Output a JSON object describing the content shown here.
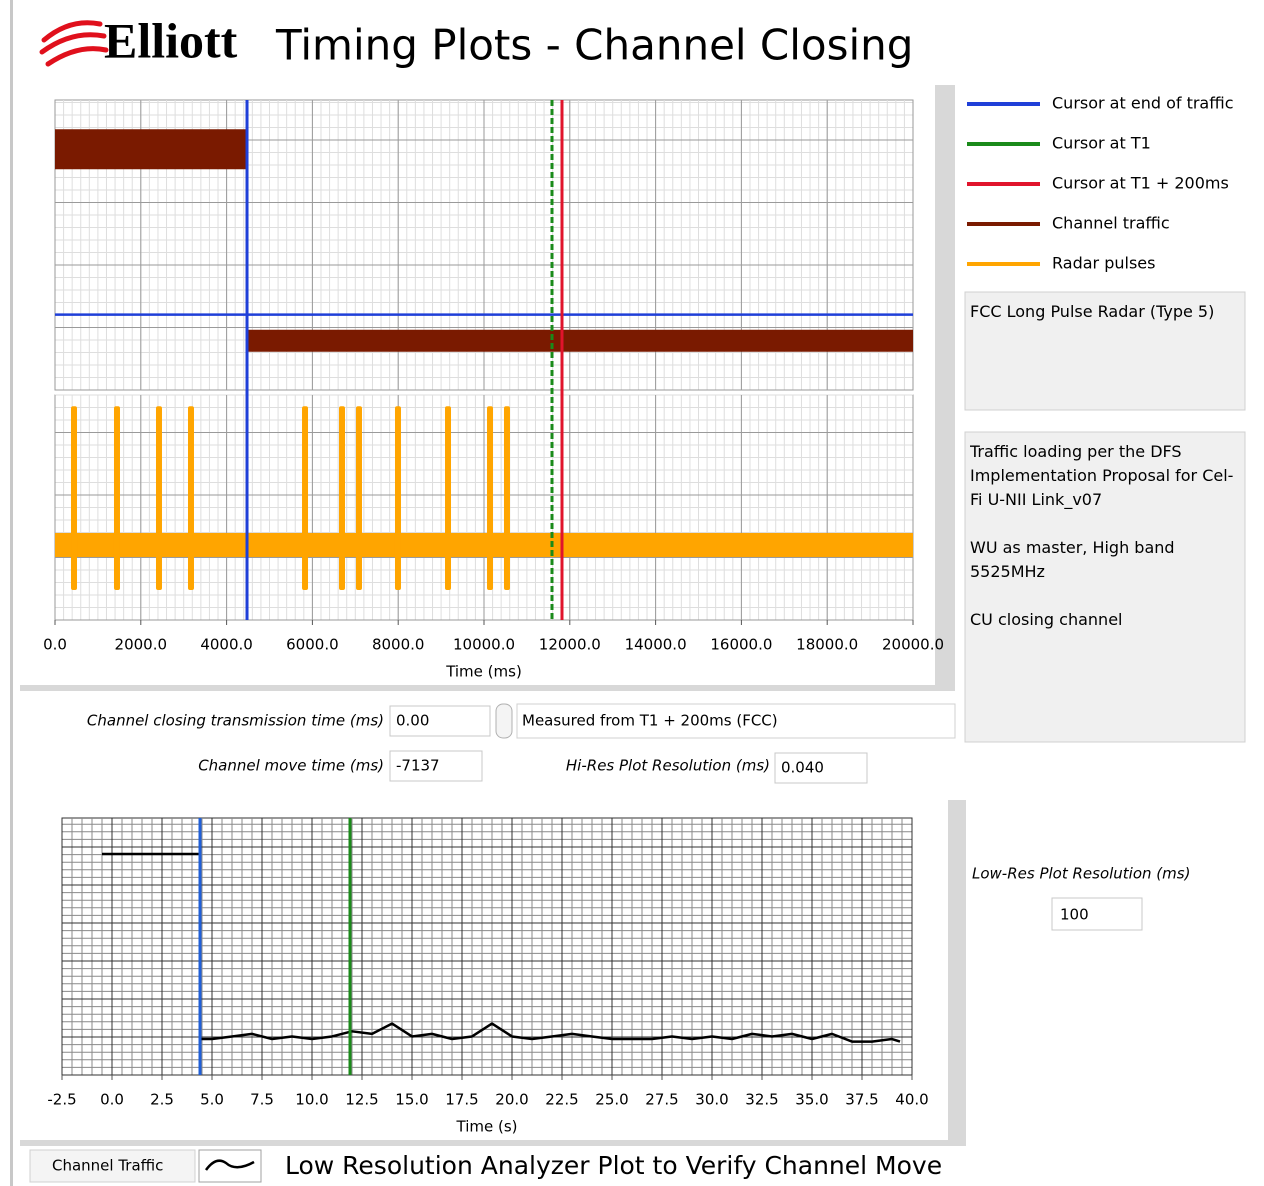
{
  "header": {
    "logo": "Elliott",
    "title": "Timing Plots - Channel Closing"
  },
  "chart_data": [
    {
      "type": "line",
      "xlabel": "Time (ms)",
      "xlim": [
        0,
        20000
      ],
      "xticks": [
        {
          "value": 0,
          "label": "0.0"
        },
        {
          "value": 2000,
          "label": "2000.0"
        },
        {
          "value": 4000,
          "label": "4000.0"
        },
        {
          "value": 6000,
          "label": "6000.0"
        },
        {
          "value": 8000,
          "label": "8000.0"
        },
        {
          "value": 10000,
          "label": "10000.0"
        },
        {
          "value": 12000,
          "label": "12000.0"
        },
        {
          "value": 14000,
          "label": "14000.0"
        },
        {
          "value": 16000,
          "label": "16000.0"
        },
        {
          "value": 18000,
          "label": "18000.0"
        },
        {
          "value": 20000,
          "label": "20000.0"
        }
      ],
      "ylim": [
        0,
        10
      ],
      "y2lim": [
        -1,
        2
      ],
      "grid": true,
      "cursors": [
        {
          "name": "Cursor at end of traffic",
          "color": "#1f3fd8",
          "x": 4476,
          "y": 2.6
        },
        {
          "name": "Cursor at T1",
          "color": "#1a8a1a",
          "x": 11585
        },
        {
          "name": "Cursor at T1 + 200ms",
          "color": "#e0142c",
          "x": 11818
        }
      ],
      "series": [
        {
          "name": "Channel traffic",
          "color": "#7a1a00",
          "x": [
            0,
            4476,
            null,
            4500,
            20000
          ],
          "values": [
            8.3,
            8.3,
            null,
            1.7,
            1.7
          ]
        },
        {
          "name": "Radar pulses",
          "color": "#ffa500",
          "axis": "y2",
          "baseline": 0,
          "pulse_min": -0.6,
          "x": [
            443,
            1445,
            2424,
            3170,
            5828,
            6690,
            7086,
            7995,
            9161,
            10140,
            10536
          ],
          "values": [
            1.85,
            1.85,
            1.85,
            1.85,
            1.85,
            1.85,
            1.85,
            1.85,
            1.85,
            1.85,
            1.85
          ]
        }
      ]
    },
    {
      "type": "line",
      "xlabel": "Time (s)",
      "caption": "Low Resolution Analyzer Plot to Verify Channel Move",
      "xlim": [
        -2.5,
        40
      ],
      "xticks": [
        -2.5,
        {
          "value": 0,
          "label": "0.0"
        },
        2.5,
        {
          "value": 5,
          "label": "5.0"
        },
        7.5,
        {
          "value": 10,
          "label": "10.0"
        },
        12.5,
        {
          "value": 15,
          "label": "15.0"
        },
        17.5,
        {
          "value": 20,
          "label": "20.0"
        },
        22.5,
        {
          "value": 25,
          "label": "25.0"
        },
        27.5,
        {
          "value": 30,
          "label": "30.0"
        },
        32.5,
        {
          "value": 35,
          "label": "35.0"
        },
        37.5,
        {
          "value": 40,
          "label": "40.0"
        }
      ],
      "ylim": [
        0,
        10
      ],
      "grid": true,
      "cursors": [
        {
          "color": "#1f5fd8",
          "x": 4.4
        },
        {
          "color": "#1a8a1a",
          "x": 11.9
        }
      ],
      "series": [
        {
          "name": "Channel Traffic",
          "color": "#000000",
          "x": [
            -0.5,
            4.4,
            4.4,
            5,
            6,
            7,
            8,
            9,
            10,
            11,
            12,
            13,
            14,
            15,
            16,
            17,
            18,
            19,
            20,
            21,
            22,
            23,
            24,
            25,
            26,
            27,
            28,
            29,
            30,
            31,
            32,
            33,
            34,
            35,
            36,
            37,
            38,
            39,
            39.4
          ],
          "values": [
            8.6,
            8.6,
            1.4,
            1.4,
            1.5,
            1.6,
            1.4,
            1.5,
            1.4,
            1.5,
            1.7,
            1.6,
            2.0,
            1.5,
            1.6,
            1.4,
            1.5,
            2.0,
            1.5,
            1.4,
            1.5,
            1.6,
            1.5,
            1.4,
            1.4,
            1.4,
            1.5,
            1.4,
            1.5,
            1.4,
            1.6,
            1.5,
            1.6,
            1.4,
            1.6,
            1.3,
            1.3,
            1.4,
            1.3
          ]
        }
      ]
    }
  ],
  "notes": {
    "radar_type": "FCC Long Pulse Radar (Type 5)",
    "lines": [
      "Traffic loading per the DFS Implementation Proposal for Cel-Fi U-NII Link_v07",
      "WU as master, High band 5525MHz",
      "CU closing channel"
    ]
  },
  "fields": {
    "closing_time": {
      "label": "Channel closing transmission time (ms)",
      "value": "0.00"
    },
    "measured_from": "Measured from T1 + 200ms (FCC)",
    "move_time": {
      "label": "Channel move time (ms)",
      "value": "-7137"
    },
    "hires": {
      "label": "Hi-Res Plot Resolution (ms)",
      "value": "0.040"
    },
    "lowres": {
      "label": "Low-Res Plot Resolution (ms)",
      "value": "100"
    }
  }
}
